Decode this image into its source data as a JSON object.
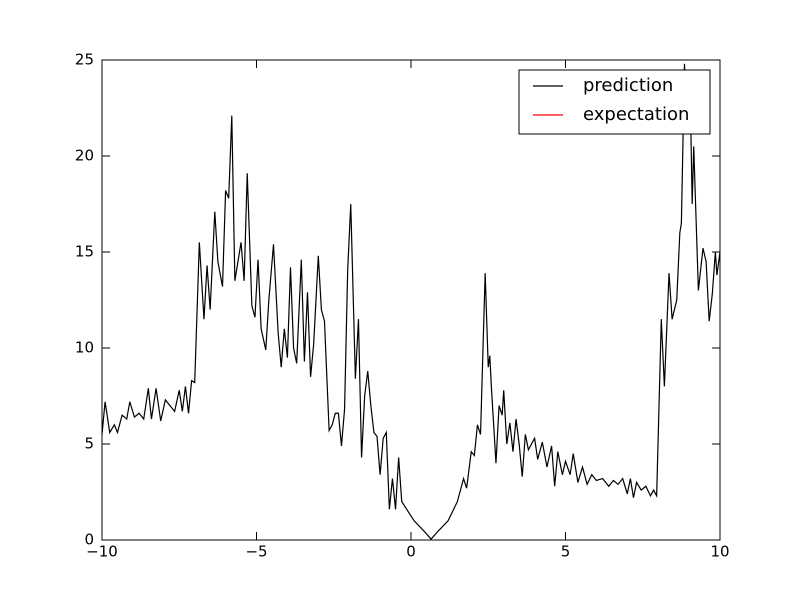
{
  "chart_data": {
    "type": "line",
    "x": [
      -10,
      -9.9,
      -9.75,
      -9.6,
      -9.5,
      -9.35,
      -9.2,
      -9.1,
      -8.95,
      -8.8,
      -8.65,
      -8.5,
      -8.4,
      -8.25,
      -8.1,
      -7.95,
      -7.8,
      -7.65,
      -7.5,
      -7.4,
      -7.3,
      -7.2,
      -7.1,
      -7.0,
      -6.85,
      -6.7,
      -6.6,
      -6.5,
      -6.35,
      -6.25,
      -6.1,
      -6.0,
      -5.9,
      -5.8,
      -5.7,
      -5.6,
      -5.5,
      -5.4,
      -5.3,
      -5.15,
      -5.05,
      -4.95,
      -4.85,
      -4.7,
      -4.6,
      -4.45,
      -4.3,
      -4.2,
      -4.1,
      -4.0,
      -3.9,
      -3.8,
      -3.7,
      -3.55,
      -3.45,
      -3.35,
      -3.25,
      -3.15,
      -3.0,
      -2.9,
      -2.8,
      -2.65,
      -2.55,
      -2.45,
      -2.35,
      -2.25,
      -2.15,
      -2.05,
      -1.95,
      -1.8,
      -1.7,
      -1.6,
      -1.5,
      -1.4,
      -1.3,
      -1.2,
      -1.1,
      -1.0,
      -0.9,
      -0.8,
      -0.7,
      -0.6,
      -0.5,
      -0.4,
      -0.3,
      -0.1,
      0.1,
      0.4,
      0.65,
      0.9,
      1.2,
      1.5,
      1.7,
      1.8,
      1.95,
      2.05,
      2.15,
      2.25,
      2.4,
      2.5,
      2.55,
      2.6,
      2.75,
      2.85,
      2.95,
      3.0,
      3.1,
      3.2,
      3.3,
      3.4,
      3.5,
      3.6,
      3.7,
      3.8,
      4.0,
      4.1,
      4.25,
      4.4,
      4.55,
      4.65,
      4.75,
      4.9,
      5.0,
      5.15,
      5.25,
      5.4,
      5.55,
      5.7,
      5.85,
      6.0,
      6.2,
      6.4,
      6.55,
      6.7,
      6.85,
      7.0,
      7.1,
      7.2,
      7.3,
      7.45,
      7.6,
      7.75,
      7.85,
      7.95,
      8.1,
      8.2,
      8.35,
      8.45,
      8.6,
      8.7,
      8.75,
      8.85,
      8.95,
      9.05,
      9.1,
      9.15,
      9.3,
      9.45,
      9.55,
      9.65,
      9.75,
      9.85,
      9.9,
      10.0
    ],
    "series": [
      {
        "name": "prediction",
        "color": "#000000",
        "values": [
          5.5,
          7.2,
          5.6,
          6.0,
          5.6,
          6.5,
          6.3,
          7.2,
          6.4,
          6.6,
          6.3,
          7.9,
          6.3,
          7.9,
          6.2,
          7.3,
          7.0,
          6.7,
          7.8,
          6.7,
          8.0,
          6.6,
          8.3,
          8.2,
          15.5,
          11.5,
          14.3,
          12.0,
          17.1,
          14.5,
          13.2,
          18.2,
          17.8,
          22.1,
          13.5,
          14.5,
          15.5,
          13.5,
          19.1,
          12.2,
          11.6,
          14.6,
          11.0,
          9.9,
          12.5,
          15.4,
          10.8,
          9.0,
          11.0,
          9.5,
          14.2,
          10.0,
          9.2,
          14.6,
          9.3,
          12.9,
          8.5,
          10.2,
          14.8,
          12.0,
          11.4,
          5.7,
          6.0,
          6.6,
          6.6,
          4.9,
          6.8,
          14.0,
          17.5,
          8.4,
          11.5,
          4.3,
          7.5,
          8.8,
          7.0,
          5.6,
          5.4,
          3.4,
          5.3,
          5.6,
          1.6,
          3.2,
          1.6,
          4.3,
          2.0,
          1.5,
          1.0,
          0.5,
          0.05,
          0.5,
          1.0,
          2.0,
          3.2,
          2.7,
          4.6,
          4.4,
          6.0,
          5.5,
          13.9,
          9.0,
          9.6,
          8.0,
          4.0,
          7.0,
          6.5,
          7.8,
          5.0,
          6.1,
          4.6,
          6.3,
          5.0,
          3.3,
          5.5,
          4.7,
          5.3,
          4.2,
          5.1,
          3.8,
          4.9,
          2.8,
          4.6,
          3.4,
          4.1,
          3.4,
          4.5,
          3.0,
          3.8,
          2.9,
          3.4,
          3.1,
          3.2,
          2.8,
          3.1,
          2.9,
          3.2,
          2.4,
          3.2,
          2.2,
          3.0,
          2.6,
          2.8,
          2.3,
          2.6,
          2.3,
          11.5,
          8.0,
          13.9,
          11.5,
          12.5,
          16.0,
          16.5,
          24.8,
          21.5,
          22.0,
          17.5,
          20.5,
          13.0,
          15.2,
          14.5,
          11.4,
          12.8,
          15.0,
          13.8,
          15.0
        ]
      },
      {
        "name": "expectation",
        "color": "#ff0000",
        "values": [
          null,
          null,
          null,
          null,
          null,
          null,
          null,
          null,
          null,
          null,
          null,
          null,
          null,
          null,
          null,
          null,
          null,
          null,
          null,
          null,
          null,
          null,
          null,
          null,
          null,
          null,
          null,
          null,
          null,
          null,
          null,
          null,
          null,
          null,
          null,
          null,
          null,
          null,
          null,
          null,
          null,
          null,
          null,
          null,
          null,
          null,
          null,
          null,
          null,
          null,
          null,
          null,
          null,
          null,
          null,
          null,
          null,
          null,
          null,
          null,
          null,
          null,
          null,
          null,
          null,
          null,
          null,
          null,
          null,
          null,
          null,
          null,
          null,
          null,
          null,
          null,
          null,
          null,
          null,
          null,
          null,
          null,
          null,
          null,
          null,
          null,
          null,
          null,
          null,
          null,
          null,
          null,
          null,
          null,
          null,
          null,
          null,
          null,
          null,
          null,
          null,
          null,
          null,
          null,
          null,
          null,
          null,
          null,
          null,
          null,
          null,
          null,
          null,
          null,
          null,
          null,
          null,
          null,
          null,
          null,
          null,
          null,
          null,
          null,
          null,
          null,
          null,
          null,
          null,
          null,
          null,
          null,
          null,
          null,
          null,
          null,
          null,
          null,
          null,
          null,
          null,
          null,
          null,
          null,
          null,
          null,
          null,
          null,
          null,
          null,
          null,
          null,
          null,
          null,
          null,
          null,
          null,
          null,
          null,
          null,
          null,
          null,
          null,
          null
        ]
      }
    ],
    "xlim": [
      -10,
      10
    ],
    "xticks": [
      {
        "value": -10,
        "label": "−10"
      },
      {
        "value": -5,
        "label": "−5"
      },
      0,
      5,
      10
    ],
    "ylim": [
      0,
      25
    ],
    "yticks": [
      0,
      5,
      10,
      15,
      20,
      25
    ],
    "legend": "upper right"
  }
}
